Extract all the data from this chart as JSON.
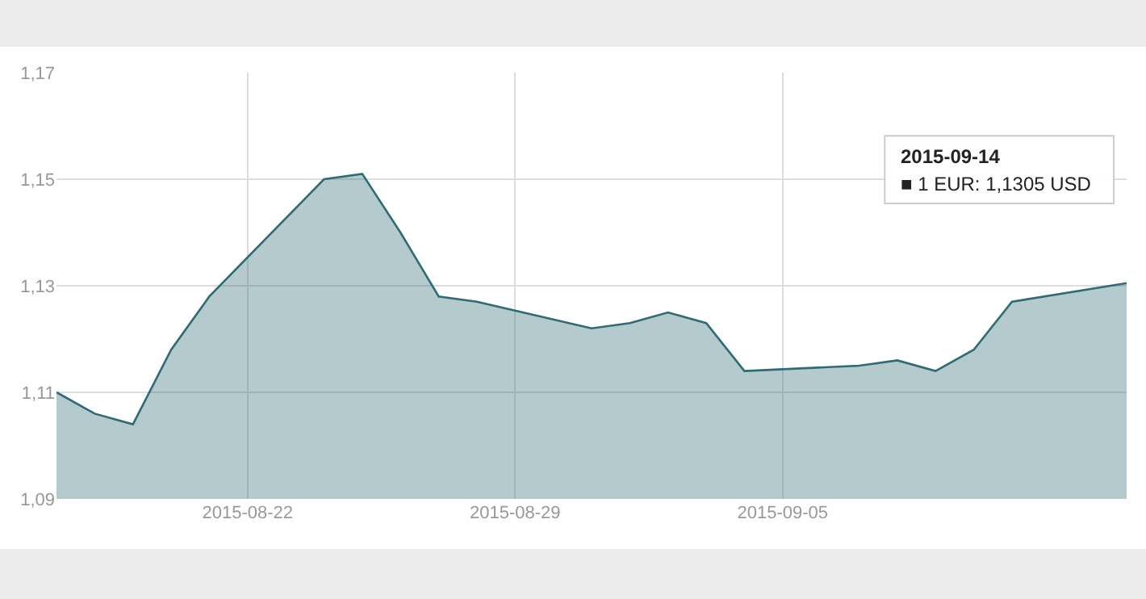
{
  "chart_data": {
    "type": "area",
    "x": [
      "2015-08-17",
      "2015-08-18",
      "2015-08-19",
      "2015-08-20",
      "2015-08-21",
      "2015-08-24",
      "2015-08-25",
      "2015-08-26",
      "2015-08-27",
      "2015-08-28",
      "2015-08-31",
      "2015-09-01",
      "2015-09-02",
      "2015-09-03",
      "2015-09-04",
      "2015-09-07",
      "2015-09-08",
      "2015-09-09",
      "2015-09-10",
      "2015-09-11",
      "2015-09-14"
    ],
    "series": [
      {
        "color": "#2f6b75",
        "values": [
          1.11,
          1.106,
          1.104,
          1.118,
          1.128,
          1.15,
          1.151,
          1.14,
          1.128,
          1.127,
          1.122,
          1.123,
          1.125,
          1.123,
          1.114,
          1.115,
          1.116,
          1.114,
          1.118,
          1.127,
          1.1305
        ]
      }
    ],
    "xlim": [
      "2015-08-17",
      "2015-09-14"
    ],
    "xticks": [
      "2015-08-22",
      "2015-08-29",
      "2015-09-05"
    ],
    "ylim": [
      1.09,
      1.17
    ],
    "yticks": [
      {
        "value": 1.09,
        "label": "1,09"
      },
      {
        "value": 1.11,
        "label": "1,11"
      },
      {
        "value": 1.13,
        "label": "1,13"
      },
      {
        "value": 1.15,
        "label": "1,15"
      },
      {
        "value": 1.17,
        "label": "1,17"
      }
    ],
    "grid": true,
    "annotations": [
      "2015-09-14",
      "■ 1 EUR: 1,1305 USD"
    ]
  }
}
